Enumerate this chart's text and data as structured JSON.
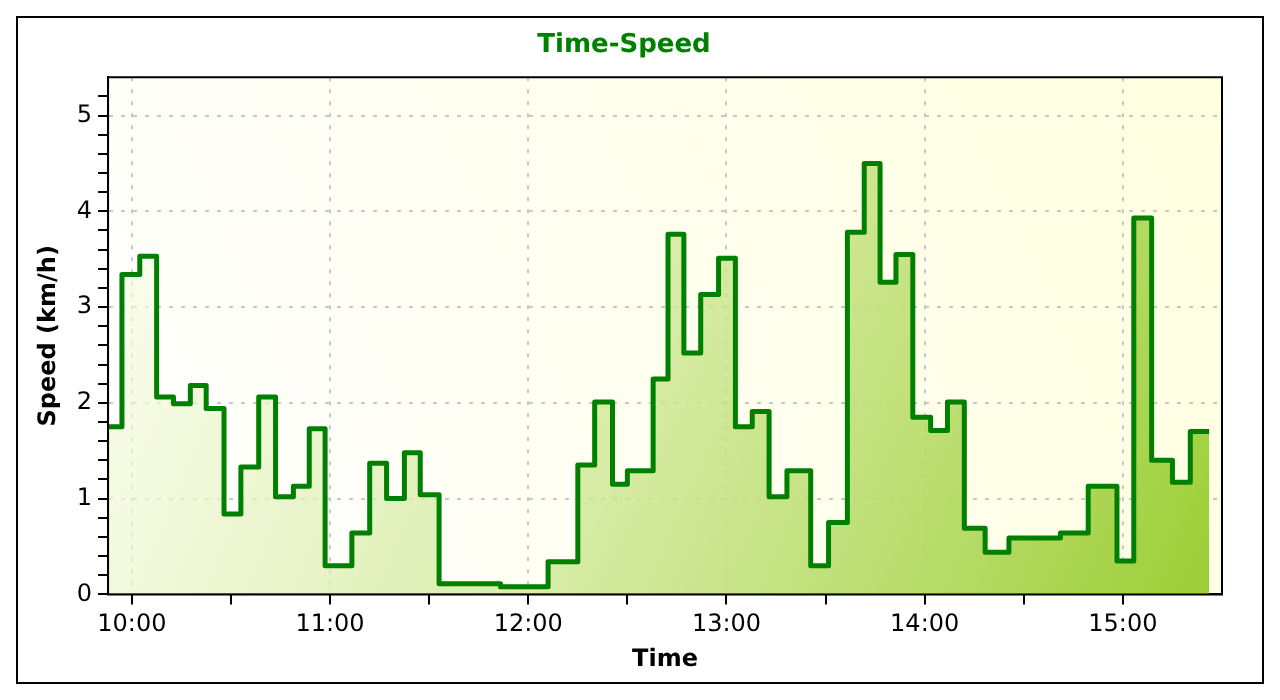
{
  "chart_data": {
    "type": "area",
    "title": "Time-Speed",
    "xlabel": "Time",
    "ylabel": "Speed (km/h)",
    "x": [
      9.88,
      9.95,
      9.95,
      10.04,
      10.04,
      10.125,
      10.125,
      10.21,
      10.21,
      10.295,
      10.295,
      10.375,
      10.375,
      10.465,
      10.465,
      10.55,
      10.55,
      10.64,
      10.64,
      10.725,
      10.725,
      10.815,
      10.815,
      10.895,
      10.895,
      10.975,
      10.975,
      11.11,
      11.11,
      11.2,
      11.2,
      11.285,
      11.285,
      11.375,
      11.375,
      11.455,
      11.455,
      11.55,
      11.55,
      11.86,
      11.86,
      12.1,
      12.1,
      12.25,
      12.25,
      12.335,
      12.335,
      12.425,
      12.425,
      12.5,
      12.5,
      12.63,
      12.63,
      12.705,
      12.705,
      12.785,
      12.785,
      12.87,
      12.87,
      12.96,
      12.96,
      13.045,
      13.045,
      13.13,
      13.13,
      13.215,
      13.215,
      13.305,
      13.305,
      13.425,
      13.425,
      13.515,
      13.515,
      13.61,
      13.61,
      13.695,
      13.695,
      13.775,
      13.775,
      13.855,
      13.855,
      13.94,
      13.94,
      14.03,
      14.03,
      14.115,
      14.115,
      14.2,
      14.2,
      14.305,
      14.305,
      14.425,
      14.425,
      14.685,
      14.685,
      14.825,
      14.825,
      14.97,
      14.97,
      15.055,
      15.055,
      15.145,
      15.145,
      15.25,
      15.25,
      15.34,
      15.34,
      15.435
    ],
    "series": [
      {
        "color": "#008000",
        "values": [
          1.75,
          1.75,
          3.34,
          3.34,
          3.53,
          3.53,
          2.06,
          2.06,
          1.99,
          1.99,
          2.18,
          2.18,
          1.94,
          1.94,
          0.84,
          0.84,
          1.33,
          1.33,
          2.06,
          2.06,
          1.02,
          1.02,
          1.13,
          1.13,
          1.73,
          1.73,
          0.3,
          0.3,
          0.64,
          0.64,
          1.37,
          1.37,
          1.0,
          1.0,
          1.48,
          1.48,
          1.04,
          1.04,
          0.11,
          0.11,
          0.08,
          0.08,
          0.34,
          0.34,
          1.35,
          1.35,
          2.01,
          2.01,
          1.15,
          1.15,
          1.29,
          1.29,
          2.25,
          2.25,
          3.76,
          3.76,
          2.52,
          2.52,
          3.13,
          3.13,
          3.51,
          3.51,
          1.75,
          1.75,
          1.91,
          1.91,
          1.02,
          1.02,
          1.29,
          1.29,
          0.3,
          0.3,
          0.75,
          0.75,
          3.78,
          3.78,
          4.5,
          4.5,
          3.26,
          3.26,
          3.55,
          3.55,
          1.85,
          1.85,
          1.71,
          1.71,
          2.01,
          2.01,
          0.69,
          0.69,
          0.44,
          0.44,
          0.59,
          0.59,
          0.64,
          0.64,
          1.13,
          1.13,
          0.35,
          0.35,
          3.93,
          3.93,
          1.4,
          1.4,
          1.17,
          1.17,
          1.7,
          1.7
        ]
      }
    ],
    "xlim": [
      9.88,
      15.5
    ],
    "xticks": [
      {
        "value": 10,
        "label": "10:00"
      },
      {
        "value": 10.5,
        "label": null
      },
      {
        "value": 11,
        "label": "11:00"
      },
      {
        "value": 11.5,
        "label": null
      },
      {
        "value": 12,
        "label": "12:00"
      },
      {
        "value": 12.5,
        "label": null
      },
      {
        "value": 13,
        "label": "13:00"
      },
      {
        "value": 13.5,
        "label": null
      },
      {
        "value": 14,
        "label": "14:00"
      },
      {
        "value": 14.5,
        "label": null
      },
      {
        "value": 15,
        "label": "15:00"
      }
    ],
    "ylim": [
      0,
      5.4
    ],
    "yticks": [
      0,
      {
        "value": 0.2,
        "label": null
      },
      {
        "value": 0.4,
        "label": null
      },
      {
        "value": 0.6,
        "label": null
      },
      {
        "value": 0.8,
        "label": null
      },
      1,
      {
        "value": 1.2,
        "label": null
      },
      {
        "value": 1.4,
        "label": null
      },
      {
        "value": 1.6,
        "label": null
      },
      {
        "value": 1.8,
        "label": null
      },
      2,
      {
        "value": 2.2,
        "label": null
      },
      {
        "value": 2.4,
        "label": null
      },
      {
        "value": 2.6,
        "label": null
      },
      {
        "value": 2.8,
        "label": null
      },
      3,
      {
        "value": 3.2,
        "label": null
      },
      {
        "value": 3.4,
        "label": null
      },
      {
        "value": 3.6,
        "label": null
      },
      {
        "value": 3.8,
        "label": null
      },
      4,
      {
        "value": 4.2,
        "label": null
      },
      {
        "value": 4.4,
        "label": null
      },
      {
        "value": 4.6,
        "label": null
      },
      {
        "value": 4.8,
        "label": null
      },
      5,
      {
        "value": 5.2,
        "label": null
      }
    ],
    "grid": true,
    "legend": false
  }
}
